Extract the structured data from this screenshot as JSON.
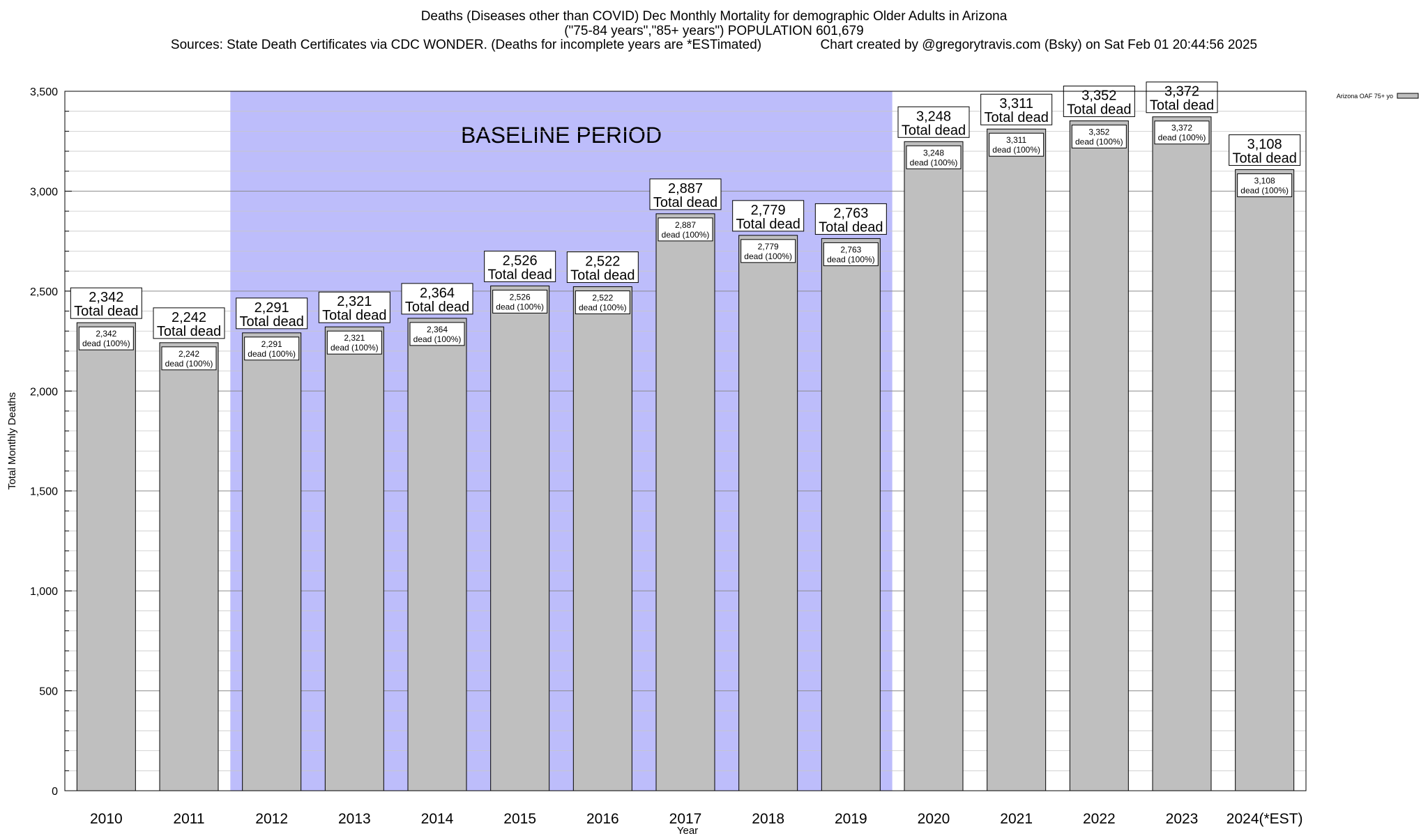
{
  "title": {
    "line1": "Deaths (Diseases other than COVID) Dec Monthly Mortality for demographic Older Adults in Arizona",
    "line2": "(\"75-84 years\",\"85+ years\") POPULATION 601,679",
    "line3": "Sources: State Death Certificates via CDC WONDER. (Deaths for incomplete years are *ESTimated)                Chart created by @gregorytravis.com (Bsky) on Sat Feb 01 20:44:56 2025"
  },
  "chart_data": {
    "type": "bar",
    "categories": [
      "2010",
      "2011",
      "2012",
      "2013",
      "2014",
      "2015",
      "2016",
      "2017",
      "2018",
      "2019",
      "2020",
      "2021",
      "2022",
      "2023",
      "2024(*EST)"
    ],
    "series": [
      {
        "name": "Arizona OAF 75+ yo",
        "values": [
          2342,
          2242,
          2291,
          2321,
          2364,
          2526,
          2522,
          2887,
          2779,
          2763,
          3248,
          3311,
          3352,
          3372,
          3108
        ]
      }
    ],
    "total_labels": [
      "2,342",
      "2,242",
      "2,291",
      "2,321",
      "2,364",
      "2,526",
      "2,522",
      "2,887",
      "2,779",
      "2,763",
      "3,248",
      "3,311",
      "3,352",
      "3,372",
      "3,108"
    ],
    "total_suffix": "Total dead",
    "inner_labels": [
      "2,342",
      "2,242",
      "2,291",
      "2,321",
      "2,364",
      "2,526",
      "2,522",
      "2,887",
      "2,779",
      "2,763",
      "3,248",
      "3,311",
      "3,352",
      "3,372",
      "3,108"
    ],
    "inner_suffix": "dead (100%)",
    "xlabel": "Year",
    "ylabel": "Total Monthly Deaths",
    "ylim": [
      0,
      3500
    ],
    "y_ticks": [
      0,
      500,
      1000,
      1500,
      2000,
      2500,
      3000,
      3500
    ],
    "y_tick_labels": [
      "0",
      "500",
      "1,000",
      "1,500",
      "2,000",
      "2,500",
      "3,000",
      "3,500"
    ],
    "minor_tick_step": 100,
    "grid": true,
    "baseline_period": {
      "label": "BASELINE PERIOD",
      "start": "2012",
      "end": "2019",
      "color": "#bdbdfb"
    },
    "bar_color": "#bfbfbf",
    "legend_position": "top-right"
  }
}
